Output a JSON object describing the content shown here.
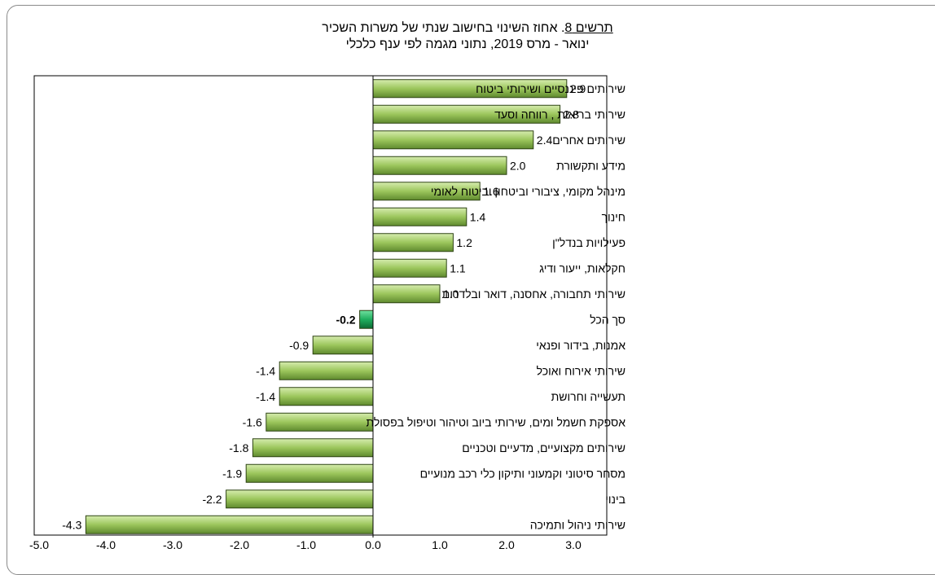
{
  "chart_data": {
    "type": "bar",
    "orientation": "horizontal",
    "title_prefix": "תרשים 8",
    "title_rest": ". אחוז השינוי בחישוב שנתי של משרות השכיר",
    "subtitle": "ינואר - מרס 2019, נתוני מגמה לפי ענף כלכלי",
    "categories": [
      "שירותים פיננסיים ושירותי ביטוח",
      "שירותי בריאות , רווחה וסעד",
      "שירותים אחרים",
      "מידע ותקשורת",
      "מינהל מקומי, ציבורי וביטחון וביטוח לאומי",
      "חינוך",
      "פעילויות בנדל\"ן",
      "חקלאות, ייעור ודיג",
      "שירותי תחבורה, אחסנה, דואר ובלדרות",
      "סך הכל",
      "אמנות, בידור ופנאי",
      "שירותי אירוח ואוכל",
      "תעשייה וחרושת",
      "אספקת חשמל ומים, שירותי ביוב וטיהור וטיפול בפסולת",
      "שירותים מקצועיים, מדעיים וטכניים",
      "מסחר סיטוני וקמעוני ותיקון כלי רכב מנועיים",
      "בינוי",
      "שירותי ניהול ותמיכה"
    ],
    "values": [
      2.9,
      2.8,
      2.4,
      2.0,
      1.6,
      1.4,
      1.2,
      1.1,
      1.0,
      -0.2,
      -0.9,
      -1.4,
      -1.4,
      -1.6,
      -1.8,
      -1.9,
      -2.2,
      -4.3
    ],
    "value_labels": [
      "2.9",
      "2.8",
      "2.4",
      "2.0",
      "1.6",
      "1.4",
      "1.2",
      "1.1",
      "1.0",
      "-0.2",
      "-0.9",
      "-1.4",
      "-1.4",
      "-1.6",
      "-1.8",
      "-1.9",
      "-2.2",
      "-4.3"
    ],
    "highlight_category": "סך הכל",
    "xlim": [
      -5.0,
      3.0
    ],
    "xticks": [
      -5.0,
      -4.0,
      -3.0,
      -2.0,
      -1.0,
      0.0,
      1.0,
      2.0,
      3.0
    ],
    "xtick_labels": [
      "-5.0",
      "-4.0",
      "-3.0",
      "-2.0",
      "-1.0",
      "0.0",
      "1.0",
      "2.0",
      "3.0"
    ],
    "grid": false,
    "legend": "none",
    "colors": {
      "bar_light": "#d6ecae",
      "bar_mid": "#9cc65c",
      "bar_dark": "#5f8a2e",
      "bar_edge": "#2e4414",
      "highlight_light": "#6fe0a0",
      "highlight_mid": "#1fae5e",
      "highlight_dark": "#0c6a34",
      "axis": "#000000"
    }
  }
}
